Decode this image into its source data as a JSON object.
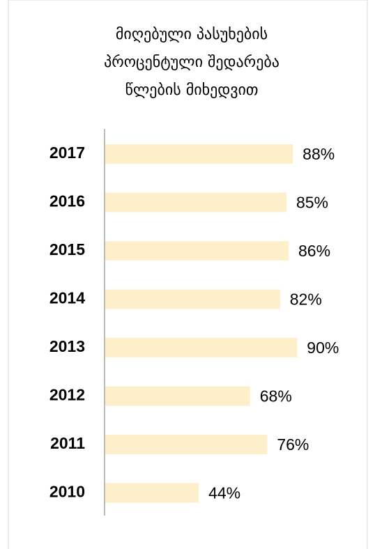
{
  "chart_data": {
    "type": "bar",
    "orientation": "horizontal",
    "title": [
      "მიღებული პასუხების",
      "პროცენტული  შედარება",
      "წლების მიხედვით"
    ],
    "categories": [
      "2017",
      "2016",
      "2015",
      "2014",
      "2013",
      "2012",
      "2011",
      "2010"
    ],
    "values": [
      88,
      85,
      86,
      82,
      90,
      68,
      76,
      44
    ],
    "value_labels": [
      "88%",
      "85%",
      "86%",
      "82%",
      "90%",
      "68%",
      "76%",
      "44%"
    ],
    "color": "#fdefc9",
    "xlim": [
      0,
      100
    ]
  }
}
